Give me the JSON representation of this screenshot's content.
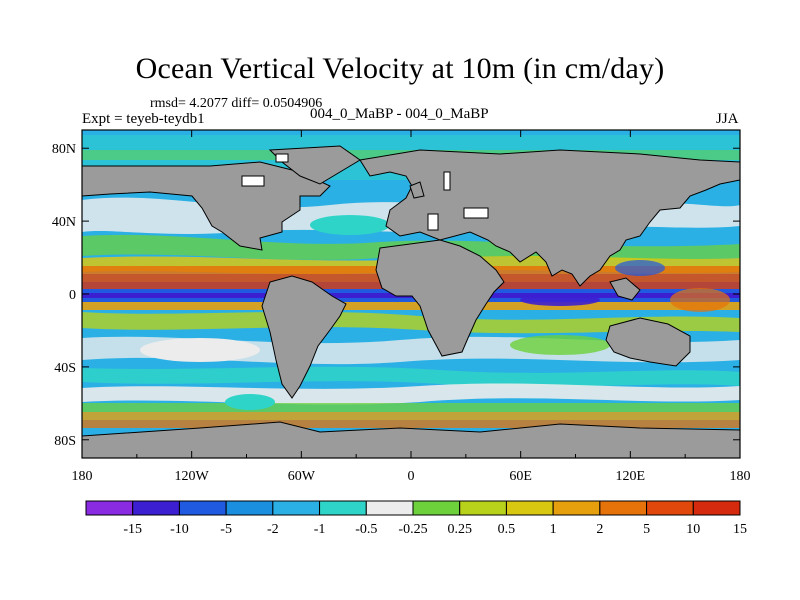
{
  "header": {
    "title": "Ocean Vertical Velocity at 10m (in cm/day)",
    "stats": "rmsd= 4.2077 diff= 0.0504906",
    "experiment": "Expt = teyeb-teydb1",
    "case": "004_0_MaBP - 004_0_MaBP",
    "season": "JJA"
  },
  "chart_data": {
    "type": "heatmap",
    "title": "Ocean Vertical Velocity at 10m (in cm/day)",
    "subtitle": "rmsd= 4.2077 diff= 0.0504906",
    "units": "cm/day",
    "x_axis": {
      "range": [
        -180,
        180
      ],
      "ticks": [
        {
          "value": -180,
          "label": "180"
        },
        {
          "value": -120,
          "label": "120W"
        },
        {
          "value": -60,
          "label": "60W"
        },
        {
          "value": 0,
          "label": "0"
        },
        {
          "value": 60,
          "label": "60E"
        },
        {
          "value": 120,
          "label": "120E"
        },
        {
          "value": 180,
          "label": "180"
        }
      ]
    },
    "y_axis": {
      "range": [
        -90,
        90
      ],
      "ticks": [
        {
          "value": 80,
          "label": "80N"
        },
        {
          "value": 40,
          "label": "40N"
        },
        {
          "value": 0,
          "label": "0"
        },
        {
          "value": -40,
          "label": "40S"
        },
        {
          "value": -80,
          "label": "80S"
        }
      ]
    },
    "colorbar": {
      "colors": [
        "#8a2be2",
        "#3c1fd1",
        "#1f5ae0",
        "#1a8fe0",
        "#2bb0e6",
        "#2fd4c8",
        "#ececec",
        "#6cd13a",
        "#b8d21c",
        "#d8c812",
        "#e6a00e",
        "#e6720a",
        "#e0480c",
        "#d62a0e"
      ],
      "labels": [
        "-15",
        "-10",
        "-5",
        "-2",
        "-1",
        "-0.5",
        "-0.25",
        "0.25",
        "0.5",
        "1",
        "2",
        "5",
        "10",
        "15"
      ]
    },
    "land_color": "#9b9b9b"
  }
}
